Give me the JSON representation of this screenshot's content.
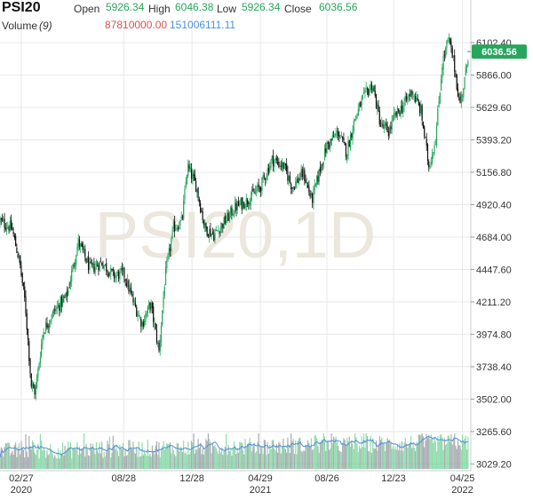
{
  "header": {
    "symbol": "PSI20",
    "open_label": "Open",
    "open_value": "5926.34",
    "high_label": "High",
    "high_value": "6046.38",
    "low_label": "Low",
    "low_value": "5926.34",
    "close_label": "Close",
    "close_value": "6036.56",
    "volume_label": "Volume",
    "volume_param": "(9)",
    "volume_value": "87810000.00",
    "volume_ma_value": "151006111.11"
  },
  "watermark": "PSI20,1D",
  "last_price_label": "6036.56",
  "colors": {
    "up": "#26a65b",
    "down": "#111111",
    "volume_up": "#7ed6a0",
    "volume_down": "#9aa0a6",
    "volume_ma": "#4a90d9",
    "price_tag": "#26a65b",
    "grid": "#e8e8e8",
    "watermark": "#ece7dc"
  },
  "chart_data": {
    "type": "candlestick",
    "y_axis_ticks": [
      "6102.40",
      "5866.00",
      "5629.60",
      "5393.20",
      "5156.80",
      "4920.40",
      "4684.00",
      "4447.60",
      "4211.20",
      "3974.80",
      "3738.40",
      "3502.00",
      "3265.60",
      "3029.20"
    ],
    "y_range": [
      2980,
      6180
    ],
    "x_axis_ticks": [
      {
        "date": "2020-02-27",
        "label": "02/27",
        "sublabel": "2020"
      },
      {
        "date": "2020-08-28",
        "label": "08/28",
        "sublabel": ""
      },
      {
        "date": "2020-12-28",
        "label": "12/28",
        "sublabel": ""
      },
      {
        "date": "2021-04-29",
        "label": "04/29",
        "sublabel": "2021"
      },
      {
        "date": "2021-08-26",
        "label": "08/26",
        "sublabel": ""
      },
      {
        "date": "2021-12-23",
        "label": "12/23",
        "sublabel": ""
      },
      {
        "date": "2022-04-25",
        "label": "04/25",
        "sublabel": "2022"
      }
    ],
    "x_range": [
      "2020-01-20",
      "2022-05-10"
    ],
    "price_path": [
      [
        "2020-01-20",
        4800
      ],
      [
        "2020-02-10",
        4750
      ],
      [
        "2020-02-24",
        4500
      ],
      [
        "2020-03-05",
        4200
      ],
      [
        "2020-03-16",
        3600
      ],
      [
        "2020-03-23",
        3550
      ],
      [
        "2020-04-06",
        4000
      ],
      [
        "2020-04-27",
        4150
      ],
      [
        "2020-05-18",
        4250
      ],
      [
        "2020-06-08",
        4650
      ],
      [
        "2020-06-29",
        4450
      ],
      [
        "2020-07-20",
        4500
      ],
      [
        "2020-08-10",
        4400
      ],
      [
        "2020-08-28",
        4420
      ],
      [
        "2020-09-15",
        4200
      ],
      [
        "2020-09-30",
        4050
      ],
      [
        "2020-10-15",
        4200
      ],
      [
        "2020-10-30",
        3850
      ],
      [
        "2020-11-10",
        4400
      ],
      [
        "2020-11-25",
        4750
      ],
      [
        "2020-12-10",
        4800
      ],
      [
        "2020-12-20",
        5200
      ],
      [
        "2021-01-05",
        5050
      ],
      [
        "2021-01-20",
        4750
      ],
      [
        "2021-02-05",
        4700
      ],
      [
        "2021-02-25",
        4800
      ],
      [
        "2021-03-15",
        4900
      ],
      [
        "2021-04-05",
        4950
      ],
      [
        "2021-04-29",
        5050
      ],
      [
        "2021-05-20",
        5250
      ],
      [
        "2021-06-10",
        5200
      ],
      [
        "2021-06-25",
        5050
      ],
      [
        "2021-07-15",
        5150
      ],
      [
        "2021-07-30",
        4950
      ],
      [
        "2021-08-15",
        5200
      ],
      [
        "2021-08-26",
        5350
      ],
      [
        "2021-09-15",
        5450
      ],
      [
        "2021-09-30",
        5300
      ],
      [
        "2021-10-15",
        5550
      ],
      [
        "2021-10-30",
        5700
      ],
      [
        "2021-11-15",
        5800
      ],
      [
        "2021-11-30",
        5500
      ],
      [
        "2021-12-15",
        5450
      ],
      [
        "2021-12-23",
        5550
      ],
      [
        "2022-01-10",
        5650
      ],
      [
        "2022-01-25",
        5750
      ],
      [
        "2022-02-10",
        5600
      ],
      [
        "2022-02-24",
        5200
      ],
      [
        "2022-03-08",
        5400
      ],
      [
        "2022-03-20",
        5950
      ],
      [
        "2022-03-31",
        6130
      ],
      [
        "2022-04-10",
        5950
      ],
      [
        "2022-04-20",
        5650
      ],
      [
        "2022-04-28",
        5800
      ],
      [
        "2022-05-06",
        6036
      ]
    ]
  }
}
